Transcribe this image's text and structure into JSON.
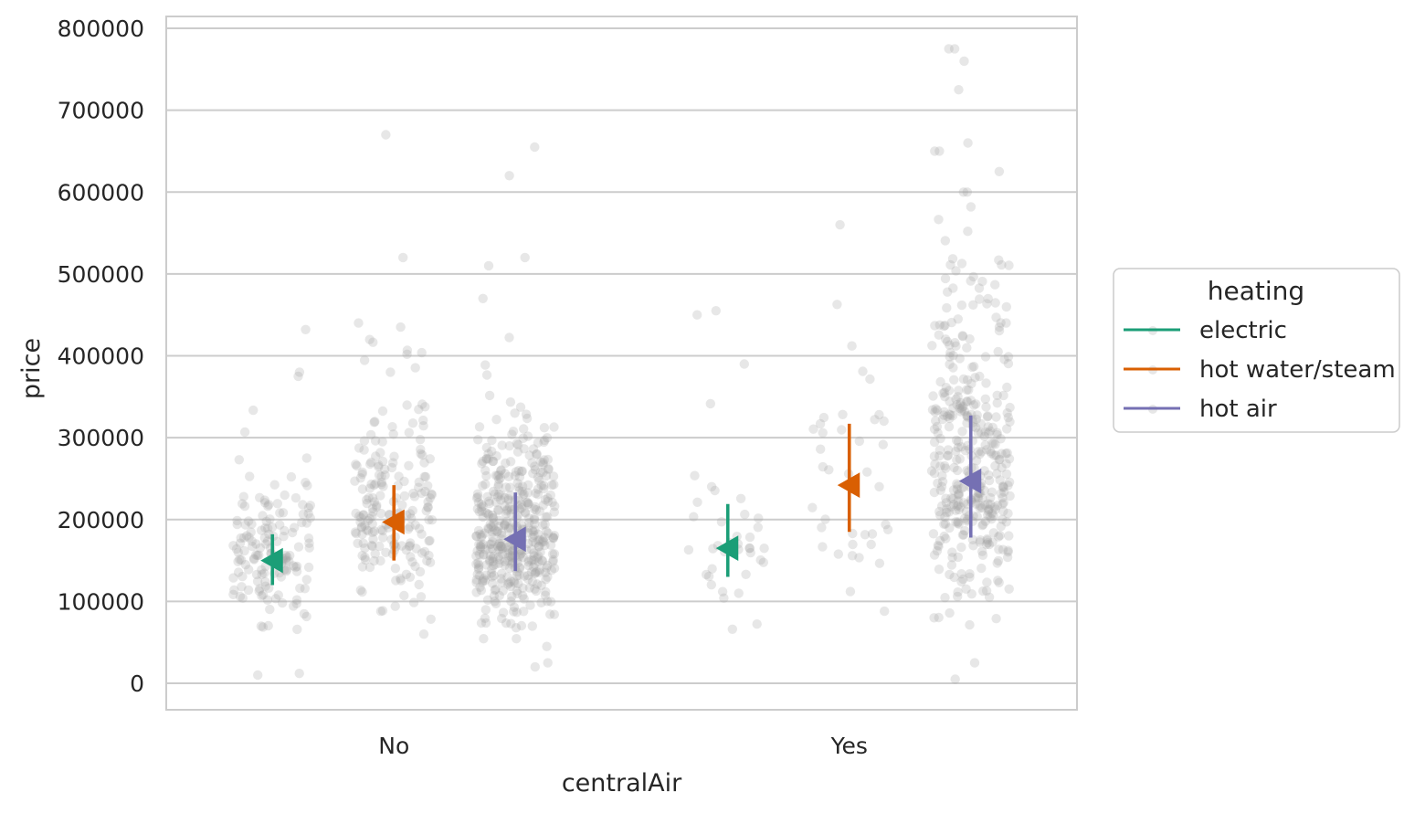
{
  "chart_data": {
    "type": "scatter",
    "subtype": "stripplot-with-pointplot",
    "xlabel": "centralAir",
    "ylabel": "price",
    "categories": [
      "No",
      "Yes"
    ],
    "ylim": [
      -32000,
      815000
    ],
    "yticks": [
      0,
      100000,
      200000,
      300000,
      400000,
      500000,
      600000,
      700000,
      800000
    ],
    "ytick_labels": [
      "0",
      "100000",
      "200000",
      "300000",
      "400000",
      "500000",
      "600000",
      "700000",
      "800000"
    ],
    "grid": "horizontal",
    "legend": {
      "title": "heating",
      "placement": "center-right outside"
    },
    "strip_color": "#a0a0a0",
    "series": [
      {
        "name": "electric",
        "color": "#1b9e77",
        "means": [
          150000,
          165000
        ],
        "ci_low": [
          120000,
          130000
        ],
        "ci_high": [
          182000,
          219000
        ],
        "points_count": [
          150,
          40
        ],
        "points_range": [
          [
            10000,
            432000
          ],
          [
            66000,
            455000
          ]
        ],
        "points_spread": [
          42000,
          50000
        ],
        "outliers": [
          [
            10000,
            12000,
            432000,
            375000,
            380000
          ],
          [
            455000,
            450000,
            390000,
            66000
          ]
        ]
      },
      {
        "name": "hot water/steam",
        "color": "#d95f02",
        "means": [
          197000,
          242000
        ],
        "ci_low": [
          150000,
          185000
        ],
        "ci_high": [
          242000,
          317000
        ],
        "points_count": [
          200,
          40
        ],
        "points_range": [
          [
            60000,
            670000
          ],
          [
            88000,
            560000
          ]
        ],
        "points_spread": [
          65000,
          75000
        ],
        "outliers": [
          [
            670000,
            520000,
            440000,
            435000,
            60000
          ],
          [
            560000,
            412000,
            88000,
            112000
          ]
        ]
      },
      {
        "name": "hot air",
        "color": "#7570b3",
        "means": [
          176000,
          247000
        ],
        "ci_low": [
          137000,
          178000
        ],
        "ci_high": [
          233000,
          327000
        ],
        "points_count": [
          450,
          400
        ],
        "points_range": [
          [
            20000,
            655000
          ],
          [
            5000,
            775000
          ]
        ],
        "points_spread": [
          60000,
          95000
        ],
        "outliers": [
          [
            655000,
            620000,
            520000,
            510000,
            470000,
            20000,
            25000,
            45000
          ],
          [
            775000,
            775000,
            760000,
            725000,
            660000,
            650000,
            650000,
            625000,
            600000,
            600000,
            5000,
            80000
          ]
        ]
      }
    ]
  }
}
